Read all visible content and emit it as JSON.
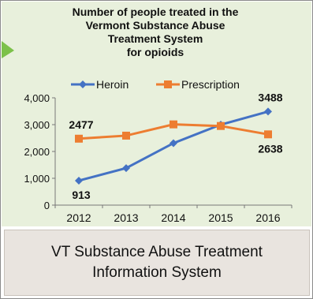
{
  "caption": "VT Substance Abuse Treatment Information System",
  "chart_data": {
    "type": "line",
    "title_lines": [
      "Number of people treated in the",
      "Vermont Substance Abuse",
      "Treatment System",
      "for opioids"
    ],
    "categories": [
      "2012",
      "2013",
      "2014",
      "2015",
      "2016"
    ],
    "series": [
      {
        "name": "Heroin",
        "color": "#4472c4",
        "marker": "diamond",
        "values": [
          913,
          1380,
          2310,
          3000,
          3488
        ]
      },
      {
        "name": "Prescription",
        "color": "#ed7d31",
        "marker": "square",
        "values": [
          2477,
          2590,
          3010,
          2950,
          2638
        ]
      }
    ],
    "ylim": [
      0,
      4000
    ],
    "yticks": [
      0,
      1000,
      2000,
      3000,
      4000
    ],
    "ytick_labels": [
      "0",
      "1,000",
      "2,000",
      "3,000",
      "4,000"
    ],
    "data_labels": [
      {
        "series": 1,
        "index": 0,
        "text": "2477",
        "position": "above"
      },
      {
        "series": 0,
        "index": 0,
        "text": "913",
        "position": "below"
      },
      {
        "series": 0,
        "index": 4,
        "text": "3488",
        "position": "above"
      },
      {
        "series": 1,
        "index": 4,
        "text": "2638",
        "position": "below"
      }
    ],
    "legend_placement": "top",
    "grid": false
  }
}
